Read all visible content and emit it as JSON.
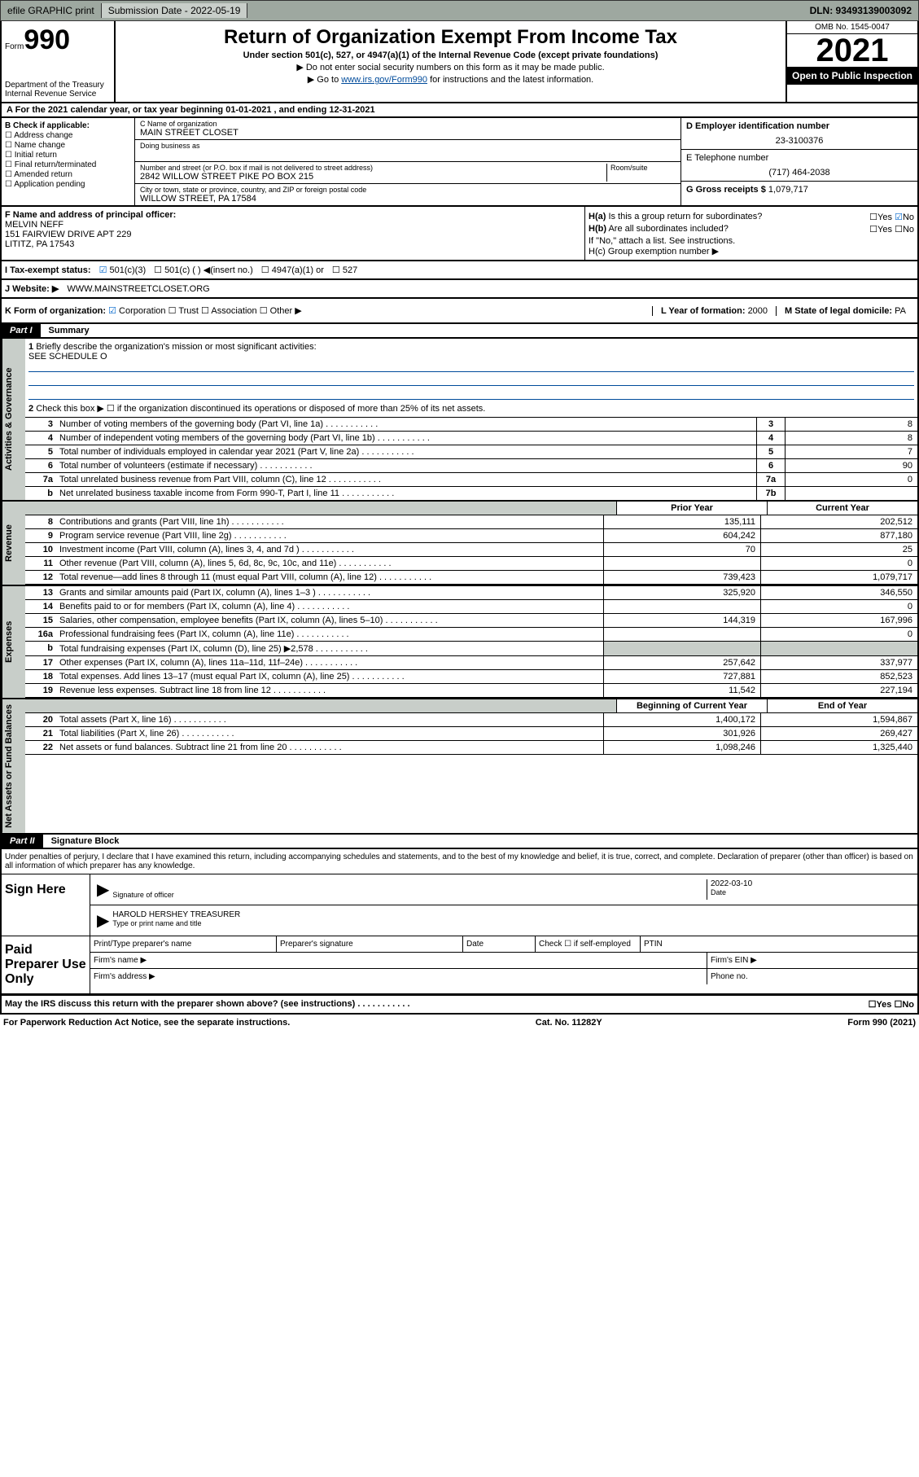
{
  "topbar": {
    "efile": "efile GRAPHIC print",
    "sub_label": "Submission Date - 2022-05-19",
    "dln": "DLN: 93493139003092"
  },
  "header": {
    "form_label": "Form",
    "form_num": "990",
    "title": "Return of Organization Exempt From Income Tax",
    "sub1": "Under section 501(c), 527, or 4947(a)(1) of the Internal Revenue Code (except private foundations)",
    "sub2": "Do not enter social security numbers on this form as it may be made public.",
    "sub3_pre": "Go to ",
    "sub3_link": "www.irs.gov/Form990",
    "sub3_post": " for instructions and the latest information.",
    "dept": "Department of the Treasury\nInternal Revenue Service",
    "omb": "OMB No. 1545-0047",
    "year": "2021",
    "open_pub": "Open to Public Inspection"
  },
  "row_a": "For the 2021 calendar year, or tax year beginning 01-01-2021   , and ending 12-31-2021",
  "col_b": {
    "title": "B Check if applicable:",
    "items": [
      "Address change",
      "Name change",
      "Initial return",
      "Final return/terminated",
      "Amended return",
      "Application pending"
    ]
  },
  "col_c": {
    "name_label": "C Name of organization",
    "name": "MAIN STREET CLOSET",
    "dba_label": "Doing business as",
    "addr_label": "Number and street (or P.O. box if mail is not delivered to street address)",
    "addr": "2842 WILLOW STREET PIKE PO BOX 215",
    "room_label": "Room/suite",
    "city_label": "City or town, state or province, country, and ZIP or foreign postal code",
    "city": "WILLOW STREET, PA  17584"
  },
  "col_d": {
    "ein_label": "D Employer identification number",
    "ein": "23-3100376",
    "tel_label": "E Telephone number",
    "tel": "(717) 464-2038",
    "gross_label": "G Gross receipts $",
    "gross": "1,079,717"
  },
  "row_f": {
    "label": "F Name and address of principal officer:",
    "name": "MELVIN NEFF",
    "addr1": "151 FAIRVIEW DRIVE APT 229",
    "addr2": "LITITZ, PA  17543"
  },
  "row_h": {
    "ha1": "H(a)  Is this a group return for",
    "ha2": "subordinates?",
    "hb1": "H(b)  Are all subordinates included?",
    "hb_note": "If \"No,\" attach a list. See instructions.",
    "hc": "H(c)  Group exemption number ▶"
  },
  "row_i": {
    "label": "I   Tax-exempt status:",
    "opts": [
      "501(c)(3)",
      "501(c) (  ) ◀(insert no.)",
      "4947(a)(1) or",
      "527"
    ]
  },
  "row_j": {
    "label": "J   Website: ▶",
    "val": "WWW.MAINSTREETCLOSET.ORG"
  },
  "row_k": {
    "left": "K Form of organization:",
    "opts": [
      "Corporation",
      "Trust",
      "Association",
      "Other ▶"
    ],
    "mid_label": "L Year of formation:",
    "mid_val": "2000",
    "right_label": "M State of legal domicile:",
    "right_val": "PA"
  },
  "part1": {
    "label": "Part I",
    "title": "Summary",
    "q1": "Briefly describe the organization's mission or most significant activities:",
    "q1_ans": "SEE SCHEDULE O",
    "q2": "Check this box ▶ ☐  if the organization discontinued its operations or disposed of more than 25% of its net assets."
  },
  "act_gov": {
    "vtab": "Activities & Governance",
    "rows": [
      {
        "n": "3",
        "t": "Number of voting members of the governing body (Part VI, line 1a)",
        "box": "3",
        "v": "8"
      },
      {
        "n": "4",
        "t": "Number of independent voting members of the governing body (Part VI, line 1b)",
        "box": "4",
        "v": "8"
      },
      {
        "n": "5",
        "t": "Total number of individuals employed in calendar year 2021 (Part V, line 2a)",
        "box": "5",
        "v": "7"
      },
      {
        "n": "6",
        "t": "Total number of volunteers (estimate if necessary)",
        "box": "6",
        "v": "90"
      },
      {
        "n": "7a",
        "t": "Total unrelated business revenue from Part VIII, column (C), line 12",
        "box": "7a",
        "v": "0"
      },
      {
        "n": "b",
        "t": "Net unrelated business taxable income from Form 990-T, Part I, line 11",
        "box": "7b",
        "v": ""
      }
    ]
  },
  "revenue": {
    "vtab": "Revenue",
    "hdr1": "Prior Year",
    "hdr2": "Current Year",
    "rows": [
      {
        "n": "8",
        "t": "Contributions and grants (Part VIII, line 1h)",
        "v1": "135,111",
        "v2": "202,512"
      },
      {
        "n": "9",
        "t": "Program service revenue (Part VIII, line 2g)",
        "v1": "604,242",
        "v2": "877,180"
      },
      {
        "n": "10",
        "t": "Investment income (Part VIII, column (A), lines 3, 4, and 7d )",
        "v1": "70",
        "v2": "25"
      },
      {
        "n": "11",
        "t": "Other revenue (Part VIII, column (A), lines 5, 6d, 8c, 9c, 10c, and 11e)",
        "v1": "",
        "v2": "0"
      },
      {
        "n": "12",
        "t": "Total revenue—add lines 8 through 11 (must equal Part VIII, column (A), line 12)",
        "v1": "739,423",
        "v2": "1,079,717"
      }
    ]
  },
  "expenses": {
    "vtab": "Expenses",
    "rows": [
      {
        "n": "13",
        "t": "Grants and similar amounts paid (Part IX, column (A), lines 1–3 )",
        "v1": "325,920",
        "v2": "346,550"
      },
      {
        "n": "14",
        "t": "Benefits paid to or for members (Part IX, column (A), line 4)",
        "v1": "",
        "v2": "0"
      },
      {
        "n": "15",
        "t": "Salaries, other compensation, employee benefits (Part IX, column (A), lines 5–10)",
        "v1": "144,319",
        "v2": "167,996"
      },
      {
        "n": "16a",
        "t": "Professional fundraising fees (Part IX, column (A), line 11e)",
        "v1": "",
        "v2": "0"
      },
      {
        "n": "b",
        "t": "Total fundraising expenses (Part IX, column (D), line 25) ▶2,578",
        "v1": "",
        "v2": "",
        "gray": true
      },
      {
        "n": "17",
        "t": "Other expenses (Part IX, column (A), lines 11a–11d, 11f–24e)",
        "v1": "257,642",
        "v2": "337,977"
      },
      {
        "n": "18",
        "t": "Total expenses. Add lines 13–17 (must equal Part IX, column (A), line 25)",
        "v1": "727,881",
        "v2": "852,523"
      },
      {
        "n": "19",
        "t": "Revenue less expenses. Subtract line 18 from line 12",
        "v1": "11,542",
        "v2": "227,194"
      }
    ]
  },
  "netassets": {
    "vtab": "Net Assets or Fund Balances",
    "hdr1": "Beginning of Current Year",
    "hdr2": "End of Year",
    "rows": [
      {
        "n": "20",
        "t": "Total assets (Part X, line 16)",
        "v1": "1,400,172",
        "v2": "1,594,867"
      },
      {
        "n": "21",
        "t": "Total liabilities (Part X, line 26)",
        "v1": "301,926",
        "v2": "269,427"
      },
      {
        "n": "22",
        "t": "Net assets or fund balances. Subtract line 21 from line 20",
        "v1": "1,098,246",
        "v2": "1,325,440"
      }
    ]
  },
  "part2": {
    "label": "Part II",
    "title": "Signature Block",
    "intro": "Under penalties of perjury, I declare that I have examined this return, including accompanying schedules and statements, and to the best of my knowledge and belief, it is true, correct, and complete. Declaration of preparer (other than officer) is based on all information of which preparer has any knowledge."
  },
  "sign": {
    "label": "Sign Here",
    "sig_label": "Signature of officer",
    "date_label": "Date",
    "date": "2022-03-10",
    "name": "HAROLD HERSHEY TREASURER",
    "name_label": "Type or print name and title"
  },
  "prep": {
    "label": "Paid Preparer Use Only",
    "c1": "Print/Type preparer's name",
    "c2": "Preparer's signature",
    "c3": "Date",
    "c4": "Check ☐ if self-employed",
    "c5": "PTIN",
    "firm_name": "Firm's name   ▶",
    "firm_ein": "Firm's EIN ▶",
    "firm_addr": "Firm's address ▶",
    "phone": "Phone no."
  },
  "footer": {
    "may": "May the IRS discuss this return with the preparer shown above? (see instructions)",
    "yn": "☐Yes   ☐No",
    "pra": "For Paperwork Reduction Act Notice, see the separate instructions.",
    "cat": "Cat. No. 11282Y",
    "form": "Form 990 (2021)"
  }
}
